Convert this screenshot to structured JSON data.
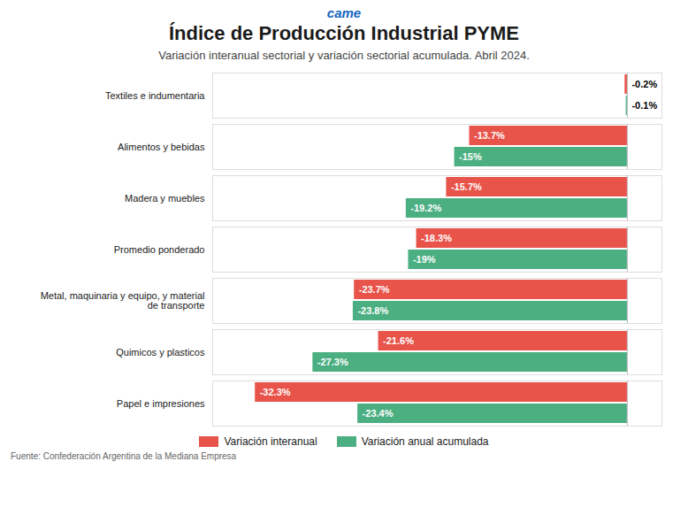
{
  "chart_data": {
    "type": "bar",
    "orientation": "horizontal",
    "title": "Índice de Producción Industrial PYME",
    "subtitle": "Variación interanual sectorial y variación sectorial acumulada. Abril 2024.",
    "logo": "came",
    "footer": "Fuente: Confederación Argentina de la Mediana Empresa",
    "categories": [
      "Textiles e indumentaria",
      "Alimentos y bebidas",
      "Madera y muebles",
      "Promedio ponderado",
      "Metal, maquinaria y equipo, y material de transporte",
      "Quimicos y plasticos",
      "Papel e impresiones"
    ],
    "series": [
      {
        "name": "Variación interanual",
        "color": "#E8534A",
        "values": [
          -0.2,
          -13.7,
          -15.7,
          -18.3,
          -23.7,
          -21.6,
          -32.3
        ],
        "value_labels": [
          "-0.2%",
          "-13.7%",
          "-15.7%",
          "-18.3%",
          "-23.7%",
          "-21.6%",
          "-32.3%"
        ]
      },
      {
        "name": "Variación anual acumulada",
        "color": "#4CAF82",
        "values": [
          -0.1,
          -15.0,
          -19.2,
          -19.0,
          -23.8,
          -27.3,
          -23.4
        ],
        "value_labels": [
          "-0.1%",
          "-15%",
          "-19.2%",
          "-19%",
          "-23.8%",
          "-27.3%",
          "-23.4%"
        ]
      }
    ],
    "xlim": [
      -36,
      3
    ],
    "data_labels": true,
    "tick_labels": "y",
    "grid": false,
    "legend": "bottom"
  }
}
